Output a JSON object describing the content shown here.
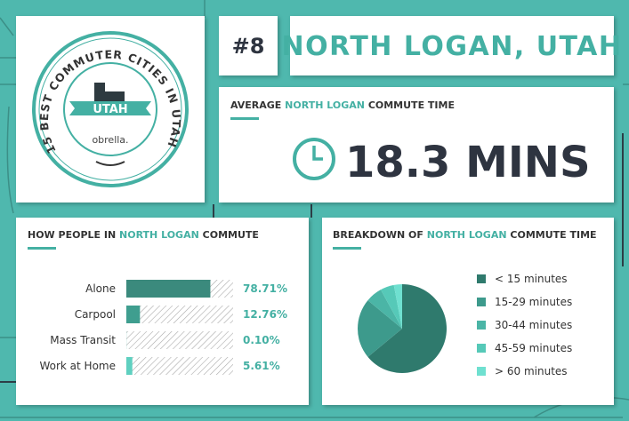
{
  "badge": {
    "arc_text": "15 BEST COMMUTER CITIES IN UTAH",
    "state": "UTAH",
    "brand": "obrella."
  },
  "rank": "#8",
  "city": "NORTH LOGAN, UTAH",
  "average": {
    "title": [
      "AVERAGE",
      "NORTH LOGAN",
      "COMMUTE TIME"
    ],
    "value": "18.3 MINS"
  },
  "chart_data": [
    {
      "type": "bar",
      "title": [
        "HOW PEOPLE IN",
        "NORTH LOGAN",
        "COMMUTE"
      ],
      "categories": [
        "Alone",
        "Carpool",
        "Mass Transit",
        "Work at Home"
      ],
      "values": [
        78.71,
        12.76,
        0.1,
        5.61
      ],
      "value_labels": [
        "78.71%",
        "12.76%",
        "0.10%",
        "5.61%"
      ],
      "colors": [
        "#3b8a7d",
        "#3f9e8f",
        "#4bb5a6",
        "#5fd0c0"
      ],
      "xlim": [
        0,
        100
      ]
    },
    {
      "type": "pie",
      "title": [
        "BREAKDOWN OF",
        "NORTH LOGAN",
        "COMMUTE TIME"
      ],
      "categories": [
        "< 15 minutes",
        "15-29 minutes",
        "30-44 minutes",
        "45-59 minutes",
        "> 60 minutes"
      ],
      "values": [
        64,
        22,
        6,
        5,
        3
      ],
      "colors": [
        "#2f7a6d",
        "#3d9a8c",
        "#4bb5a6",
        "#56c9b8",
        "#6fe0d0"
      ]
    }
  ]
}
